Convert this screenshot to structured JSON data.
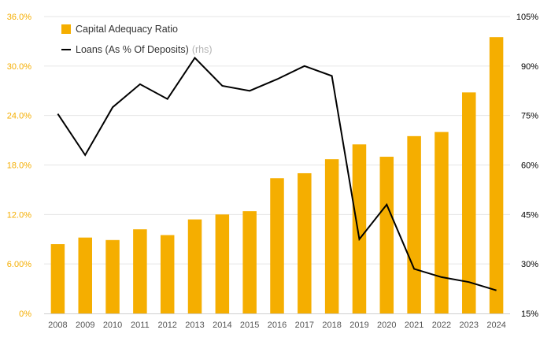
{
  "chart_data": {
    "type": "bar+line",
    "categories": [
      "2008",
      "2009",
      "2010",
      "2011",
      "2012",
      "2013",
      "2014",
      "2015",
      "2016",
      "2017",
      "2018",
      "2019",
      "2020",
      "2021",
      "2022",
      "2023",
      "2024"
    ],
    "series": [
      {
        "name": "Capital Adequacy Ratio",
        "type": "bar",
        "axis": "left",
        "color": "#F5AE00",
        "values": [
          8.4,
          9.2,
          8.9,
          10.2,
          9.5,
          11.4,
          12.0,
          12.4,
          16.4,
          17.0,
          18.7,
          20.5,
          19.0,
          21.5,
          22.0,
          26.8,
          33.5
        ]
      },
      {
        "name": "Loans (As % Of Deposits)",
        "type": "line",
        "axis": "right",
        "color": "#000000",
        "values": [
          75.5,
          63.0,
          77.5,
          84.5,
          80.0,
          92.5,
          84.0,
          82.5,
          86.0,
          90.0,
          87.0,
          37.5,
          48.0,
          28.5,
          26.0,
          24.5,
          22.0
        ]
      }
    ],
    "left_axis": {
      "ylim": [
        0,
        36
      ],
      "ticks": [
        0,
        6,
        12,
        18,
        24,
        30,
        36
      ],
      "tick_labels": [
        "0%",
        "6.00%",
        "12.0%",
        "18.0%",
        "24.0%",
        "30.0%",
        "36.0%"
      ],
      "color": "#F5AE00"
    },
    "right_axis": {
      "ylim": [
        15,
        105
      ],
      "ticks": [
        15,
        30,
        45,
        60,
        75,
        90,
        105
      ],
      "tick_labels": [
        "15%",
        "30%",
        "45%",
        "60%",
        "75%",
        "90%",
        "105%"
      ],
      "color": "#000000"
    },
    "legend": {
      "position": "top-left",
      "rhs_note": "(rhs)"
    },
    "grid": true
  }
}
